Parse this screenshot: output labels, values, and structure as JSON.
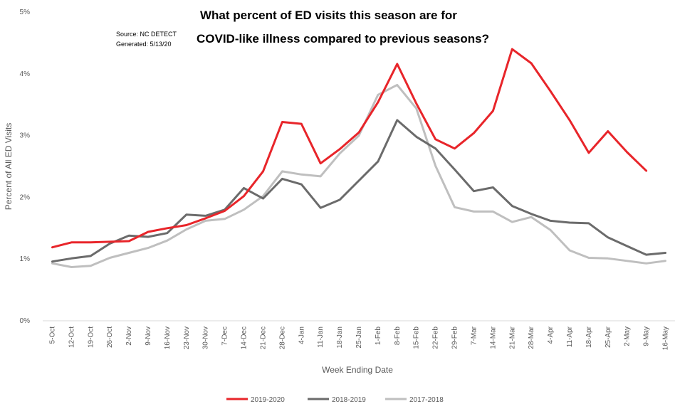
{
  "chart_data": {
    "type": "line",
    "title_line1": "What percent of ED visits this season are for",
    "title_line2": "COVID-like illness compared to previous seasons?",
    "source": "Source: NC DETECT",
    "generated": "Generated: 5/13/20",
    "xlabel": "Week Ending Date",
    "ylabel": "Percent of All ED Visits",
    "ylim": [
      0,
      5
    ],
    "yticks": [
      "0%",
      "1%",
      "2%",
      "3%",
      "4%",
      "5%"
    ],
    "grid": false,
    "legend_position": "bottom",
    "categories": [
      "5-Oct",
      "12-Oct",
      "19-Oct",
      "26-Oct",
      "2-Nov",
      "9-Nov",
      "16-Nov",
      "23-Nov",
      "30-Nov",
      "7-Dec",
      "14-Dec",
      "21-Dec",
      "28-Dec",
      "4-Jan",
      "11-Jan",
      "18-Jan",
      "25-Jan",
      "1-Feb",
      "8-Feb",
      "15-Feb",
      "22-Feb",
      "29-Feb",
      "7-Mar",
      "14-Mar",
      "21-Mar",
      "28-Mar",
      "4-Apr",
      "11-Apr",
      "18-Apr",
      "25-Apr",
      "2-May",
      "9-May",
      "16-May"
    ],
    "series": [
      {
        "name": "2019-2020",
        "color": "#e8252a",
        "values": [
          1.19,
          1.27,
          1.27,
          1.28,
          1.29,
          1.44,
          1.5,
          1.55,
          1.66,
          1.78,
          2.02,
          2.42,
          3.22,
          3.19,
          2.55,
          2.78,
          3.05,
          3.54,
          4.16,
          3.52,
          2.94,
          2.79,
          3.04,
          3.4,
          4.4,
          4.17,
          3.72,
          3.25,
          2.72,
          3.07,
          2.73,
          2.43,
          null
        ]
      },
      {
        "name": "2018-2019",
        "color": "#6b6b6b",
        "values": [
          0.96,
          1.01,
          1.05,
          1.25,
          1.38,
          1.36,
          1.42,
          1.72,
          1.7,
          1.8,
          2.15,
          1.98,
          2.3,
          2.21,
          1.83,
          1.96,
          2.27,
          2.58,
          3.25,
          2.98,
          2.79,
          2.45,
          2.1,
          2.16,
          1.86,
          1.73,
          1.62,
          1.59,
          1.58,
          1.35,
          1.21,
          1.07,
          1.1
        ]
      },
      {
        "name": "2017-2018",
        "color": "#bfbfbf",
        "values": [
          0.93,
          0.87,
          0.89,
          1.02,
          1.1,
          1.18,
          1.3,
          1.48,
          1.62,
          1.65,
          1.8,
          2.02,
          2.42,
          2.37,
          2.34,
          2.71,
          3.0,
          3.66,
          3.82,
          3.44,
          2.51,
          1.84,
          1.77,
          1.77,
          1.6,
          1.68,
          1.47,
          1.14,
          1.02,
          1.01,
          0.97,
          0.93,
          0.97
        ]
      }
    ]
  }
}
